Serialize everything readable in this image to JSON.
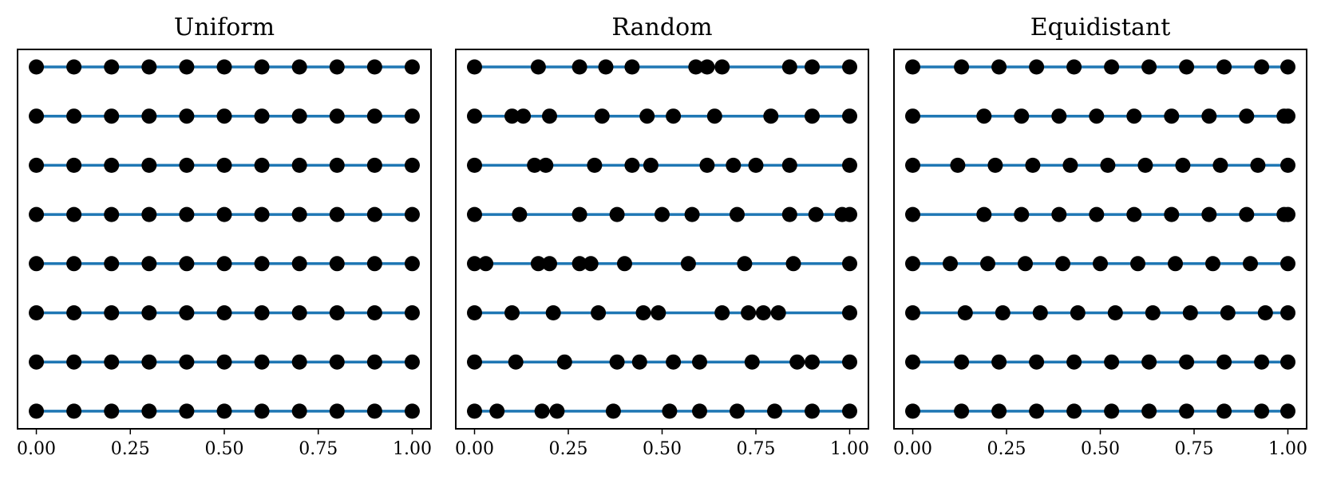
{
  "chart_data": [
    {
      "type": "scatter",
      "title": "Uniform",
      "xlim": [
        -0.05,
        1.05
      ],
      "xticks": [
        0.0,
        0.25,
        0.5,
        0.75,
        1.0
      ],
      "xtick_labels": [
        "0.00",
        "0.25",
        "0.50",
        "0.75",
        "1.00"
      ],
      "line_color": "#1f77b4",
      "point_color": "#000000",
      "rows": [
        [
          0.0,
          0.1,
          0.2,
          0.3,
          0.4,
          0.5,
          0.6,
          0.7,
          0.8,
          0.9,
          1.0
        ],
        [
          0.0,
          0.1,
          0.2,
          0.3,
          0.4,
          0.5,
          0.6,
          0.7,
          0.8,
          0.9,
          1.0
        ],
        [
          0.0,
          0.1,
          0.2,
          0.3,
          0.4,
          0.5,
          0.6,
          0.7,
          0.8,
          0.9,
          1.0
        ],
        [
          0.0,
          0.1,
          0.2,
          0.3,
          0.4,
          0.5,
          0.6,
          0.7,
          0.8,
          0.9,
          1.0
        ],
        [
          0.0,
          0.1,
          0.2,
          0.3,
          0.4,
          0.5,
          0.6,
          0.7,
          0.8,
          0.9,
          1.0
        ],
        [
          0.0,
          0.1,
          0.2,
          0.3,
          0.4,
          0.5,
          0.6,
          0.7,
          0.8,
          0.9,
          1.0
        ],
        [
          0.0,
          0.1,
          0.2,
          0.3,
          0.4,
          0.5,
          0.6,
          0.7,
          0.8,
          0.9,
          1.0
        ],
        [
          0.0,
          0.1,
          0.2,
          0.3,
          0.4,
          0.5,
          0.6,
          0.7,
          0.8,
          0.9,
          1.0
        ]
      ]
    },
    {
      "type": "scatter",
      "title": "Random",
      "xlim": [
        -0.05,
        1.05
      ],
      "xticks": [
        0.0,
        0.25,
        0.5,
        0.75,
        1.0
      ],
      "xtick_labels": [
        "0.00",
        "0.25",
        "0.50",
        "0.75",
        "1.00"
      ],
      "line_color": "#1f77b4",
      "point_color": "#000000",
      "rows": [
        [
          0.0,
          0.17,
          0.28,
          0.35,
          0.42,
          0.59,
          0.62,
          0.66,
          0.84,
          0.9,
          1.0
        ],
        [
          0.0,
          0.1,
          0.13,
          0.2,
          0.34,
          0.46,
          0.53,
          0.64,
          0.79,
          0.9,
          1.0
        ],
        [
          0.0,
          0.16,
          0.19,
          0.32,
          0.42,
          0.47,
          0.62,
          0.69,
          0.75,
          0.84,
          1.0
        ],
        [
          0.0,
          0.12,
          0.28,
          0.38,
          0.5,
          0.58,
          0.7,
          0.84,
          0.91,
          0.98,
          1.0
        ],
        [
          0.0,
          0.03,
          0.17,
          0.2,
          0.28,
          0.31,
          0.4,
          0.57,
          0.72,
          0.85,
          1.0
        ],
        [
          0.0,
          0.1,
          0.21,
          0.33,
          0.45,
          0.49,
          0.66,
          0.73,
          0.77,
          0.81,
          1.0
        ],
        [
          0.0,
          0.11,
          0.24,
          0.38,
          0.44,
          0.53,
          0.6,
          0.74,
          0.86,
          0.9,
          1.0
        ],
        [
          0.0,
          0.06,
          0.18,
          0.22,
          0.37,
          0.52,
          0.6,
          0.7,
          0.8,
          0.9,
          1.0
        ]
      ]
    },
    {
      "type": "scatter",
      "title": "Equidistant",
      "xlim": [
        -0.05,
        1.05
      ],
      "xticks": [
        0.0,
        0.25,
        0.5,
        0.75,
        1.0
      ],
      "xtick_labels": [
        "0.00",
        "0.25",
        "0.50",
        "0.75",
        "1.00"
      ],
      "line_color": "#1f77b4",
      "point_color": "#000000",
      "rows": [
        [
          0.0,
          0.13,
          0.23,
          0.33,
          0.43,
          0.53,
          0.63,
          0.73,
          0.83,
          0.93,
          1.0
        ],
        [
          0.0,
          0.19,
          0.29,
          0.39,
          0.49,
          0.59,
          0.69,
          0.79,
          0.89,
          0.99,
          1.0
        ],
        [
          0.0,
          0.12,
          0.22,
          0.32,
          0.42,
          0.52,
          0.62,
          0.72,
          0.82,
          0.92,
          1.0
        ],
        [
          0.0,
          0.19,
          0.29,
          0.39,
          0.49,
          0.59,
          0.69,
          0.79,
          0.89,
          0.99,
          1.0
        ],
        [
          0.0,
          0.1,
          0.2,
          0.3,
          0.4,
          0.5,
          0.6,
          0.7,
          0.8,
          0.9,
          1.0
        ],
        [
          0.0,
          0.14,
          0.24,
          0.34,
          0.44,
          0.54,
          0.64,
          0.74,
          0.84,
          0.94,
          1.0
        ],
        [
          0.0,
          0.13,
          0.23,
          0.33,
          0.43,
          0.53,
          0.63,
          0.73,
          0.83,
          0.93,
          1.0
        ],
        [
          0.0,
          0.13,
          0.23,
          0.33,
          0.43,
          0.53,
          0.63,
          0.73,
          0.83,
          0.93,
          1.0
        ]
      ]
    }
  ]
}
